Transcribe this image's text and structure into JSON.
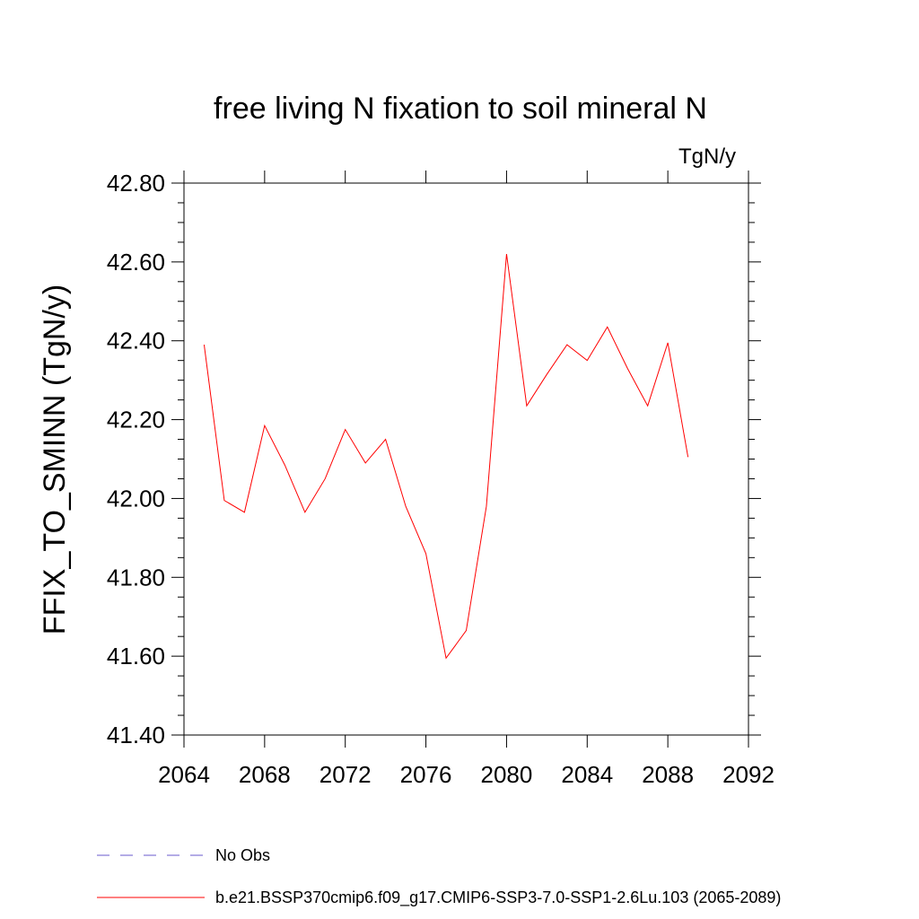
{
  "chart_data": {
    "type": "line",
    "title": "free living N fixation to soil mineral N",
    "units_label": "TgN/y",
    "xlabel": "",
    "ylabel": "FFIX_TO_SMINN  (TgN/y)",
    "xlim": [
      2064,
      2092
    ],
    "ylim": [
      41.4,
      42.8
    ],
    "x_ticks": [
      "2064",
      "2068",
      "2072",
      "2076",
      "2080",
      "2084",
      "2088",
      "2092"
    ],
    "y_ticks": [
      "41.40",
      "41.60",
      "41.80",
      "42.00",
      "42.20",
      "42.40",
      "42.60",
      "42.80"
    ],
    "series": [
      {
        "name": "b.e21.BSSP370cmip6.f09_g17.CMIP6-SSP3-7.0-SSP1-2.6Lu.103 (2065-2089)",
        "color": "#ff0000",
        "style": "solid",
        "x": [
          2065,
          2066,
          2067,
          2068,
          2069,
          2070,
          2071,
          2072,
          2073,
          2074,
          2075,
          2076,
          2077,
          2078,
          2079,
          2080,
          2081,
          2082,
          2083,
          2084,
          2085,
          2086,
          2087,
          2088,
          2089
        ],
        "values": [
          42.39,
          41.995,
          41.965,
          42.185,
          42.085,
          41.965,
          42.05,
          42.175,
          42.09,
          42.15,
          41.98,
          41.86,
          41.595,
          41.665,
          41.98,
          42.62,
          42.235,
          42.315,
          42.39,
          42.35,
          42.435,
          42.33,
          42.235,
          42.395,
          42.105
        ]
      }
    ],
    "legend": [
      {
        "label": "No Obs",
        "color": "#6a5acd",
        "style": "dashed"
      },
      {
        "label": "b.e21.BSSP370cmip6.f09_g17.CMIP6-SSP3-7.0-SSP1-2.6Lu.103 (2065-2089)",
        "color": "#ff0000",
        "style": "solid"
      }
    ],
    "legend_position": "bottom-left"
  }
}
